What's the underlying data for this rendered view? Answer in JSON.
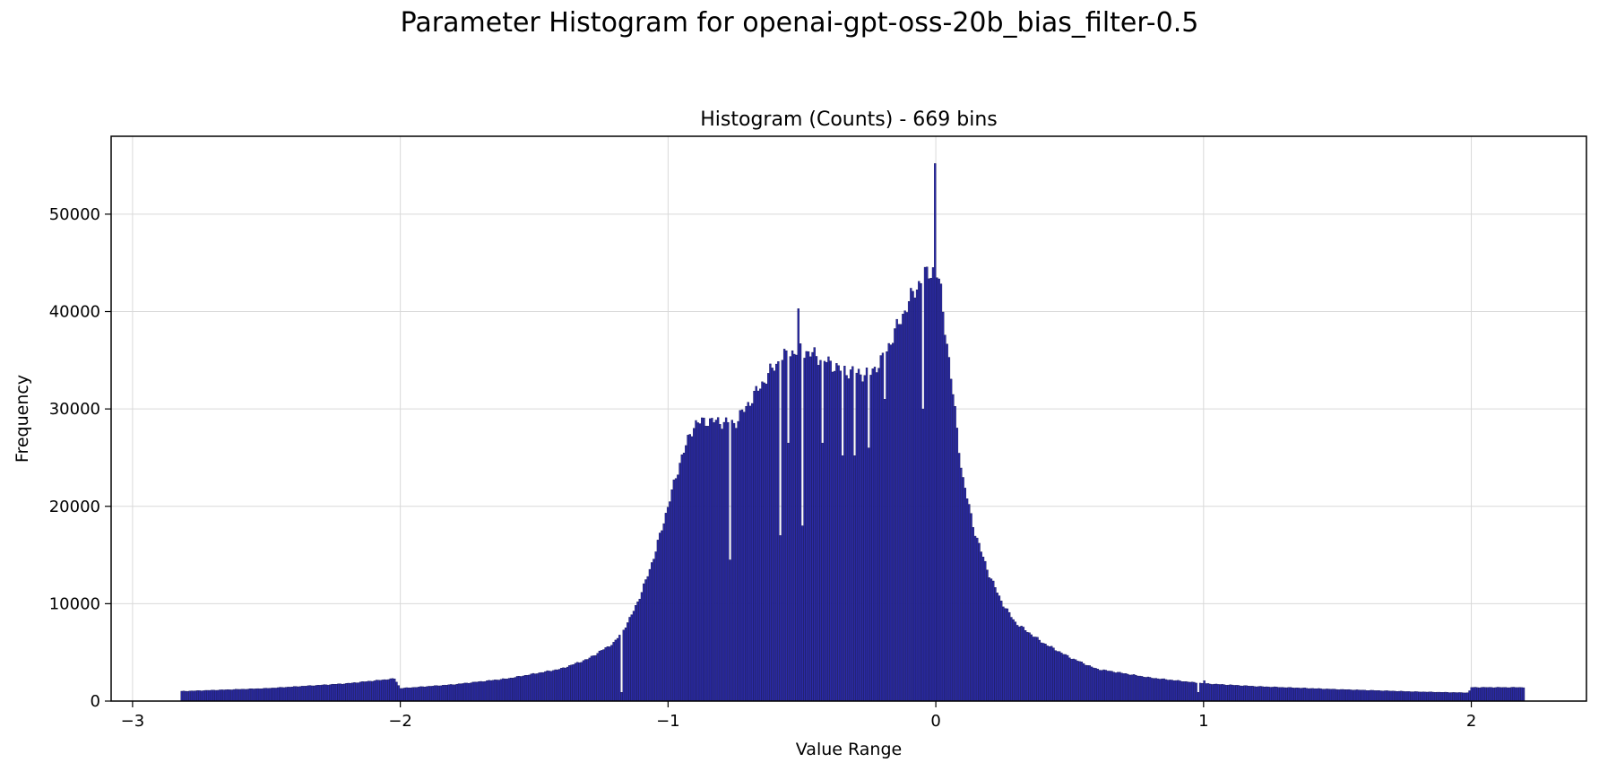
{
  "figure": {
    "suptitle": "Parameter Histogram for openai-gpt-oss-20b_bias_filter-0.5"
  },
  "chart_data": {
    "type": "bar",
    "title": "Histogram (Counts) - 669 bins",
    "xlabel": "Value Range",
    "ylabel": "Frequency",
    "bins": 669,
    "xlim": [
      -3.08,
      2.43
    ],
    "ylim": [
      0,
      58000
    ],
    "x_range_of_bins": [
      -2.82,
      2.2
    ],
    "x_ticks": [
      -3,
      -2,
      -1,
      0,
      1,
      2
    ],
    "x_tick_labels": [
      "−3",
      "−2",
      "−1",
      "0",
      "1",
      "2"
    ],
    "y_ticks": [
      0,
      10000,
      20000,
      30000,
      40000,
      50000
    ],
    "y_tick_labels": [
      "0",
      "10000",
      "20000",
      "30000",
      "40000",
      "50000"
    ],
    "grid": true,
    "bar_color": "#2a2aa6",
    "edge_color": "#101050",
    "profile": [
      [
        -2.82,
        1000
      ],
      [
        -2.5,
        1300
      ],
      [
        -2.2,
        1800
      ],
      [
        -2.02,
        2300
      ],
      [
        -2.0,
        1300
      ],
      [
        -1.8,
        1700
      ],
      [
        -1.6,
        2300
      ],
      [
        -1.4,
        3300
      ],
      [
        -1.3,
        4300
      ],
      [
        -1.2,
        6000
      ],
      [
        -1.15,
        8000
      ],
      [
        -1.1,
        11000
      ],
      [
        -1.05,
        15000
      ],
      [
        -1.0,
        20000
      ],
      [
        -0.95,
        25000
      ],
      [
        -0.9,
        28500
      ],
      [
        -0.85,
        28800
      ],
      [
        -0.75,
        28500
      ],
      [
        -0.7,
        30500
      ],
      [
        -0.6,
        34500
      ],
      [
        -0.55,
        35700
      ],
      [
        -0.5,
        36000
      ],
      [
        -0.45,
        35500
      ],
      [
        -0.35,
        34000
      ],
      [
        -0.25,
        33500
      ],
      [
        -0.2,
        35000
      ],
      [
        -0.15,
        38000
      ],
      [
        -0.1,
        41000
      ],
      [
        -0.05,
        43500
      ],
      [
        0.0,
        44500
      ],
      [
        0.02,
        42000
      ],
      [
        0.05,
        35000
      ],
      [
        0.08,
        28000
      ],
      [
        0.1,
        23000
      ],
      [
        0.15,
        17000
      ],
      [
        0.2,
        13000
      ],
      [
        0.25,
        10000
      ],
      [
        0.3,
        8000
      ],
      [
        0.4,
        6000
      ],
      [
        0.5,
        4500
      ],
      [
        0.6,
        3300
      ],
      [
        0.8,
        2400
      ],
      [
        1.0,
        1800
      ],
      [
        1.2,
        1500
      ],
      [
        1.5,
        1200
      ],
      [
        1.8,
        950
      ],
      [
        1.99,
        850
      ],
      [
        2.0,
        1400
      ],
      [
        2.2,
        1400
      ]
    ],
    "spikes": [
      [
        -0.51,
        40300
      ],
      [
        0.0,
        55200
      ],
      [
        -1.17,
        900
      ],
      [
        -0.77,
        14500
      ],
      [
        -0.58,
        17000
      ],
      [
        -0.55,
        26500
      ],
      [
        -0.5,
        18000
      ],
      [
        -0.42,
        26500
      ],
      [
        -0.35,
        25200
      ],
      [
        -0.3,
        25200
      ],
      [
        -0.25,
        26000
      ],
      [
        -0.19,
        31000
      ],
      [
        -0.05,
        30000
      ],
      [
        0.98,
        900
      ],
      [
        1.0,
        2100
      ]
    ]
  }
}
